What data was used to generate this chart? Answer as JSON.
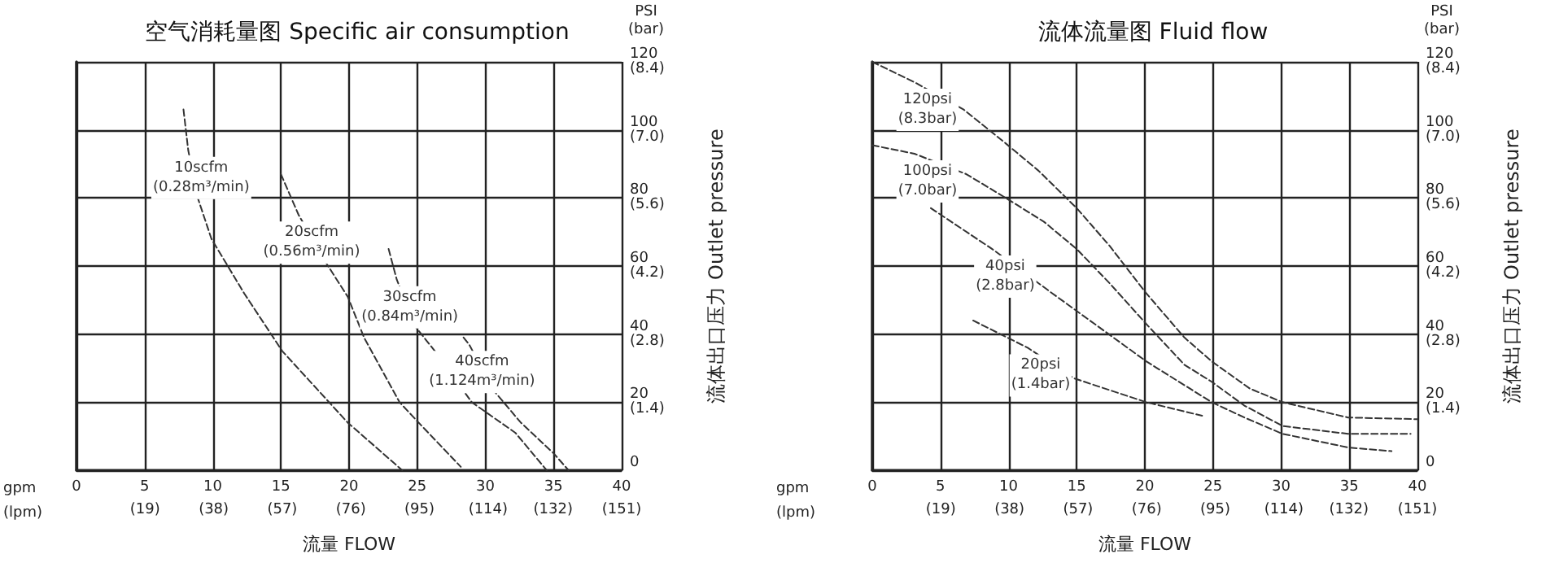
{
  "chart_data": [
    {
      "type": "line",
      "title": "空气消耗量图 Specific air consumption",
      "xlabel": "流量 FLOW",
      "y2label": "流体出口压力 Outlet pressure",
      "annotations": [
        "gpm\n(lpm)",
        "PSI\n(bar)"
      ],
      "xlim": [
        0,
        40
      ],
      "xticks": [
        0,
        5,
        10,
        15,
        20,
        25,
        30,
        35,
        40
      ],
      "x2lim": [
        0,
        151
      ],
      "x2ticks": [
        {
          "value": 19,
          "label": "(19)"
        },
        {
          "value": 38,
          "label": "(38)"
        },
        {
          "value": 57,
          "label": "(57)"
        },
        {
          "value": 76,
          "label": "(76)"
        },
        {
          "value": 95,
          "label": "(95)"
        },
        {
          "value": 114,
          "label": "(114)"
        },
        {
          "value": 132,
          "label": "(132)"
        },
        {
          "value": 151,
          "label": "(151)"
        }
      ],
      "ylim": [
        0,
        120
      ],
      "yticks": [
        0,
        20,
        40,
        60,
        80,
        100,
        120
      ],
      "y2lim": [
        0,
        8.4
      ],
      "y2ticks": [
        {
          "value": 1.4,
          "label": "(1.4)"
        },
        {
          "value": 2.8,
          "label": "(2.8)"
        },
        {
          "value": 4.2,
          "label": "(4.2)"
        },
        {
          "value": 5.6,
          "label": "(5.6)"
        },
        {
          "value": 7.0,
          "label": "(7.0)"
        },
        {
          "value": 8.4,
          "label": "(8.4)"
        }
      ],
      "grid": true,
      "marker": "none",
      "line_style": "dashed",
      "series": [
        {
          "name": "10scfm\n(0.28m³/min)",
          "color": "#333333",
          "x": [
            7.85,
            8.2,
            8.9,
            9.9,
            12.3,
            15.1,
            19.9,
            23.9
          ],
          "values": [
            106,
            94,
            80,
            68,
            52,
            35,
            14,
            0
          ]
        },
        {
          "name": "20scfm\n(0.56m³/min)",
          "color": "#333333",
          "x": [
            15,
            16.3,
            18.3,
            19.9,
            21.1,
            23.7,
            25.1,
            28.2
          ],
          "values": [
            87,
            75,
            61,
            51,
            39,
            20,
            14,
            1
          ]
        },
        {
          "name": "30scfm\n(0.84m³/min)",
          "color": "#333333",
          "x": [
            22.9,
            23.5,
            24.9,
            26.3,
            29,
            32.2,
            34.5
          ],
          "values": [
            65,
            56,
            42,
            35,
            20,
            11,
            0
          ]
        },
        {
          "name": "40scfm\n(1.124m³/min)",
          "color": "#333333",
          "x": [
            28.4,
            28.8,
            30.7,
            32.6,
            35,
            36.1
          ],
          "values": [
            39,
            37,
            23,
            14,
            5,
            0
          ]
        }
      ]
    },
    {
      "type": "line",
      "title": "流体流量图 Fluid flow",
      "xlabel": "流量 FLOW",
      "y2label": "流体出口压力 Outlet pressure",
      "annotations": [
        "gpm\n(lpm)",
        "PSI\n(bar)"
      ],
      "xlim": [
        0,
        40
      ],
      "xticks": [
        0,
        5,
        10,
        15,
        20,
        25,
        30,
        35,
        40
      ],
      "x2lim": [
        0,
        151
      ],
      "x2ticks": [
        {
          "value": 19,
          "label": "(19)"
        },
        {
          "value": 38,
          "label": "(38)"
        },
        {
          "value": 57,
          "label": "(57)"
        },
        {
          "value": 76,
          "label": "(76)"
        },
        {
          "value": 95,
          "label": "(95)"
        },
        {
          "value": 114,
          "label": "(114)"
        },
        {
          "value": 132,
          "label": "(132)"
        },
        {
          "value": 151,
          "label": "(151)"
        }
      ],
      "ylim": [
        0,
        120
      ],
      "yticks": [
        0,
        20,
        40,
        60,
        80,
        100,
        120
      ],
      "y2lim": [
        0,
        8.4
      ],
      "y2ticks": [
        {
          "value": 1.4,
          "label": "(1.4)"
        },
        {
          "value": 2.8,
          "label": "(2.8)"
        },
        {
          "value": 4.2,
          "label": "(4.2)"
        },
        {
          "value": 5.6,
          "label": "(5.6)"
        },
        {
          "value": 7.0,
          "label": "(7.0)"
        },
        {
          "value": 8.4,
          "label": "(8.4)"
        }
      ],
      "grid": true,
      "marker": "none",
      "line_style": "dashed",
      "series": [
        {
          "name": "120psi\n(8.3bar)",
          "color": "#333333",
          "x": [
            0,
            3.1,
            6.7,
            9.8,
            12.2,
            15,
            17.4,
            20.1,
            22.9,
            24.9,
            27.7,
            30.1,
            34.9,
            40
          ],
          "values": [
            120,
            114,
            106,
            96,
            88,
            77,
            66,
            52,
            39,
            32,
            24,
            20,
            15.5,
            15
          ]
        },
        {
          "name": "100psi\n(7.0bar)",
          "color": "#333333",
          "x": [
            0,
            3.1,
            6.9,
            9.8,
            12.6,
            15,
            17.4,
            20.1,
            22.9,
            24.9,
            27.3,
            30.1,
            34.9,
            39.5
          ],
          "values": [
            95.5,
            93,
            87,
            80,
            73,
            65,
            55,
            43,
            31,
            26,
            19,
            13,
            10.7,
            10.7
          ]
        },
        {
          "name": "40psi\n(2.8bar)",
          "color": "#333333",
          "x": [
            4.3,
            8.8,
            13.2,
            17,
            20.1,
            22.9,
            24.9,
            27.3,
            30.1,
            34.9,
            38.1
          ],
          "values": [
            77,
            65,
            52,
            41,
            32,
            25,
            20,
            15.5,
            10.7,
            6.7,
            5.6
          ]
        },
        {
          "name": "20psi\n(1.4bar)",
          "color": "#333333",
          "x": [
            7.4,
            11.4,
            14.8,
            20.1,
            24.2
          ],
          "values": [
            44,
            36,
            27,
            20,
            16
          ]
        }
      ]
    }
  ]
}
